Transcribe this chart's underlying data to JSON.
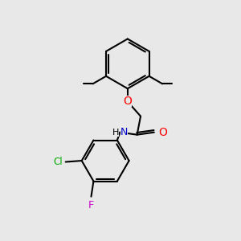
{
  "background_color": "#e8e8e8",
  "bond_color": "#000000",
  "bond_width": 1.5,
  "atom_colors": {
    "O": "#ff0000",
    "N": "#0000cc",
    "Cl": "#00aa00",
    "F": "#cc00cc",
    "C": "#000000",
    "H": "#000000"
  },
  "font_size": 8,
  "fig_width": 3.0,
  "fig_height": 3.0,
  "dpi": 100
}
